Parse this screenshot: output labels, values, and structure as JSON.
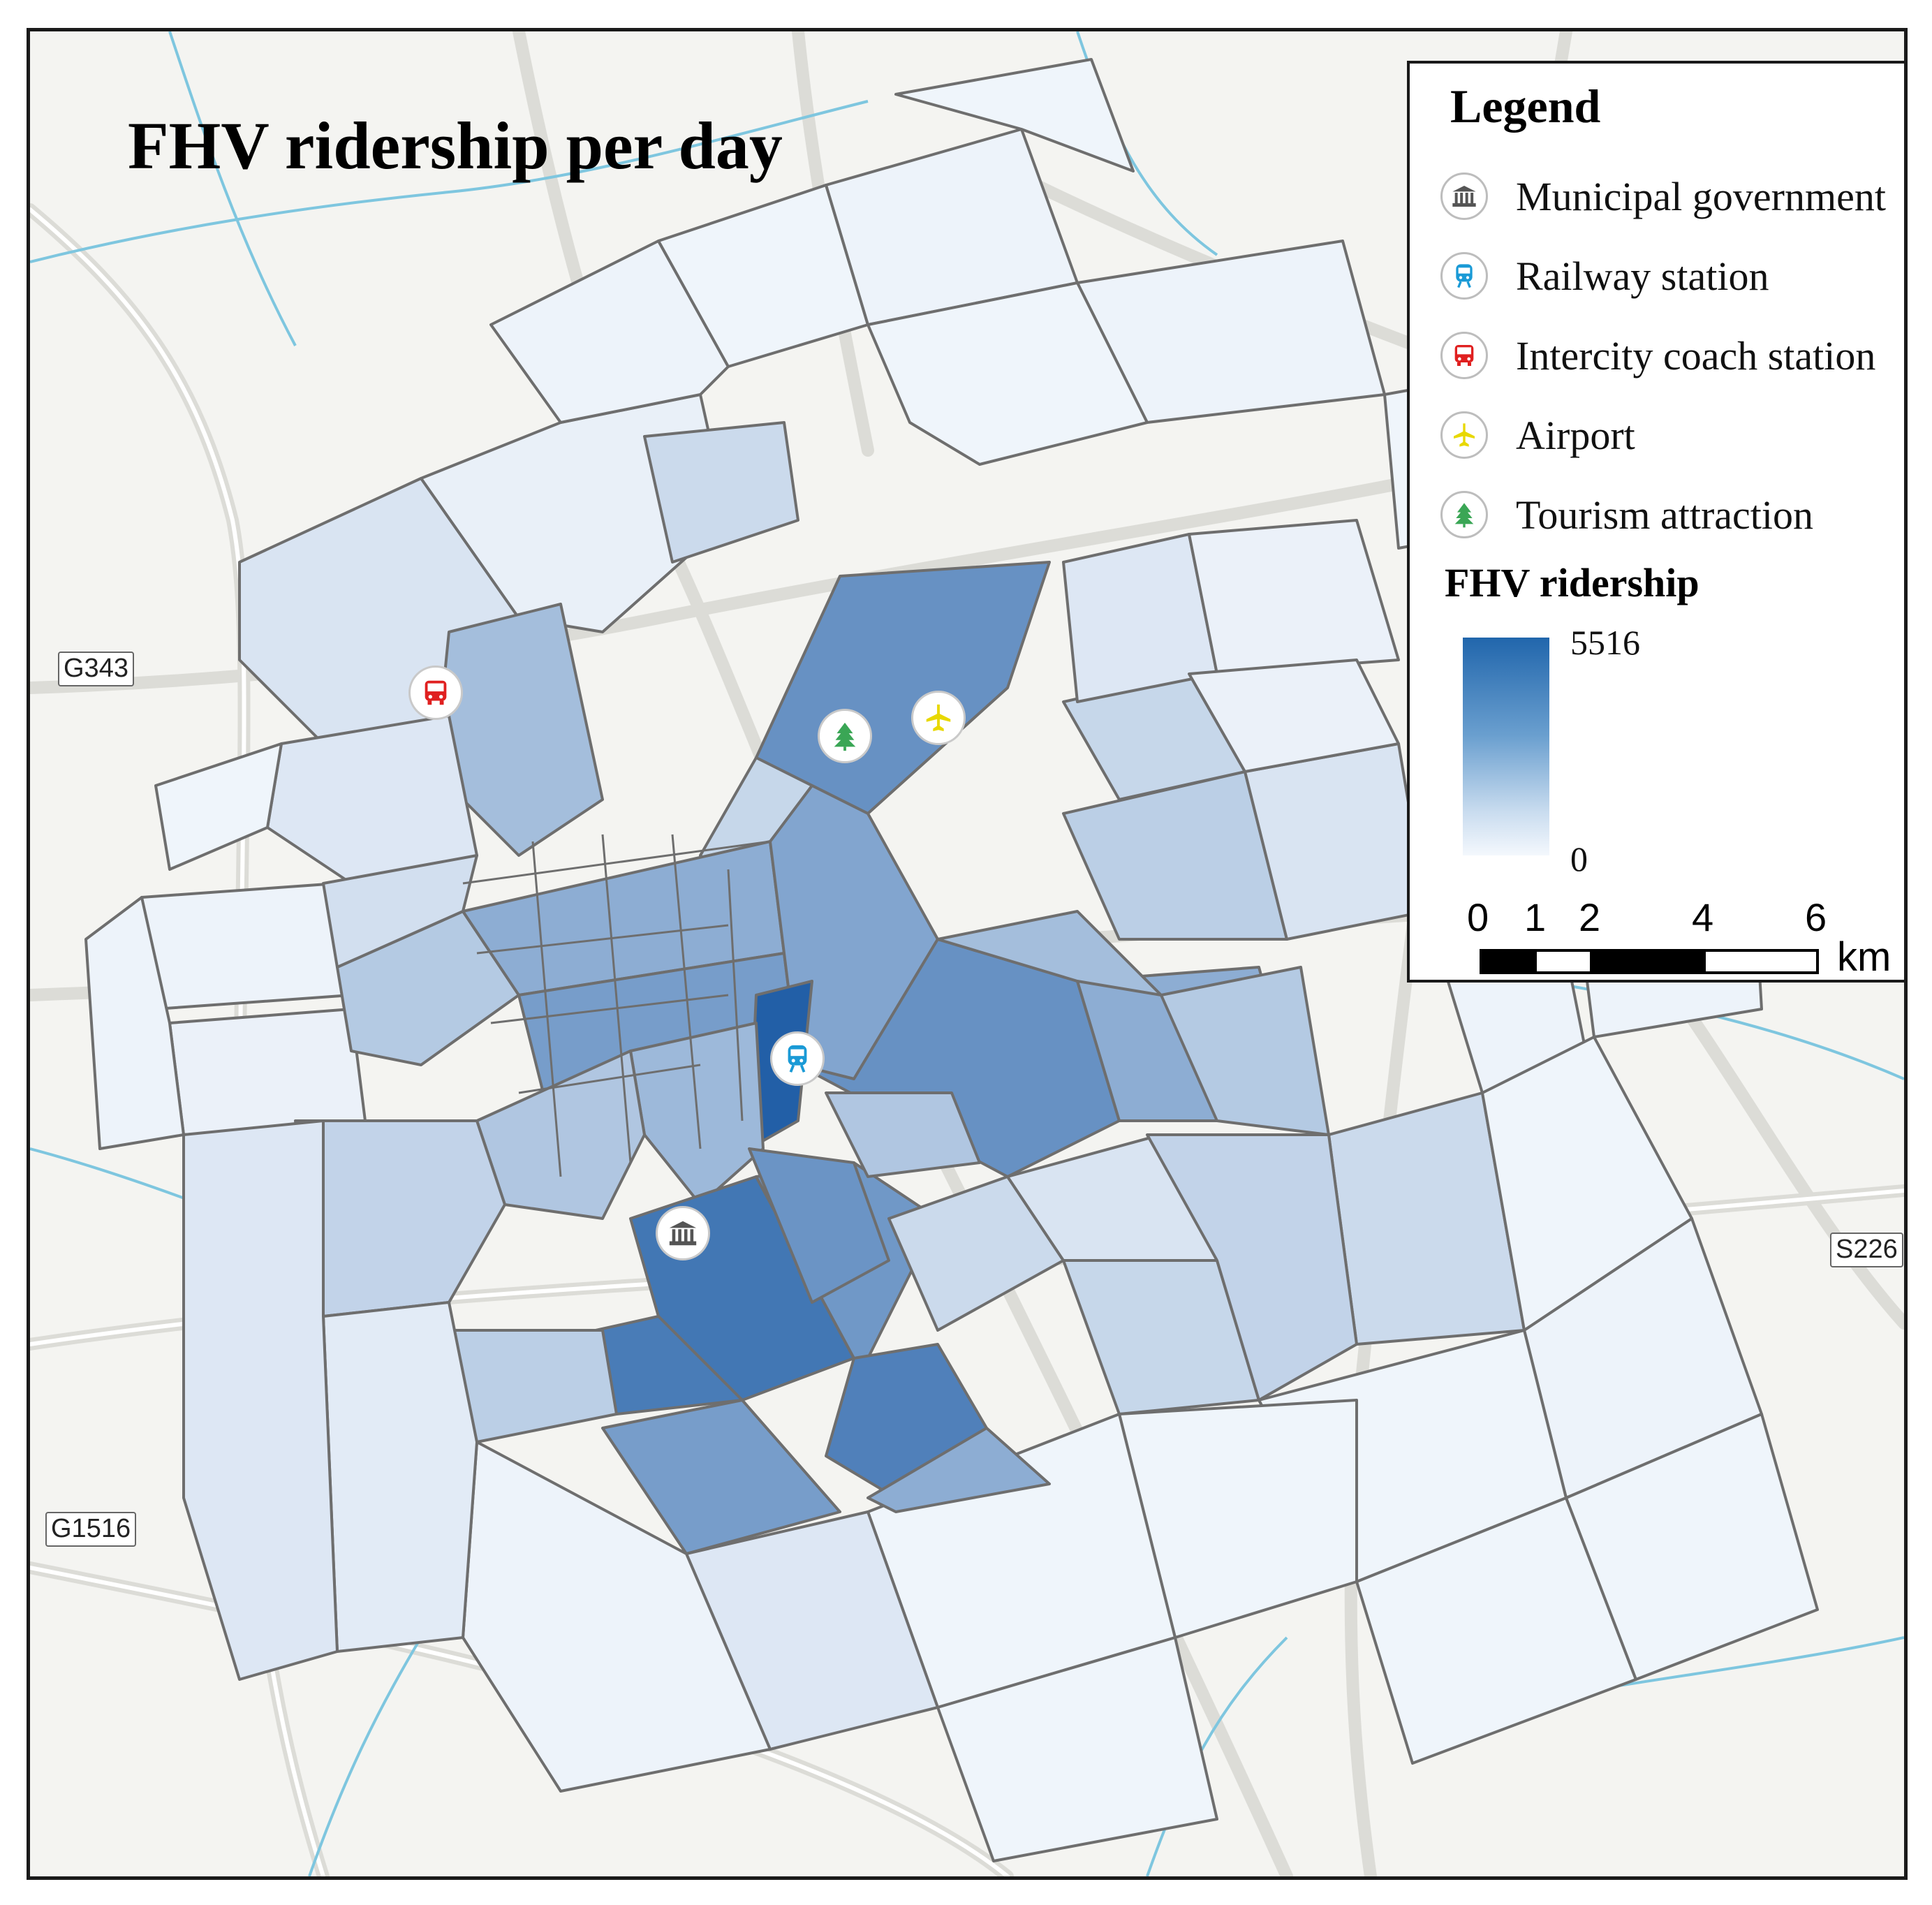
{
  "map": {
    "title": "FHV ridership per day",
    "road_labels": {
      "g343": "G343",
      "s226": "S226",
      "g1516": "G1516"
    },
    "colors": {
      "background": "#f4f4f1",
      "road": "#dcdcd7",
      "water": "#7ec6df",
      "boundary": "#6e6e6e",
      "ramp_high": "#2166ac",
      "ramp_low": "#f4f8fd"
    }
  },
  "legend": {
    "title": "Legend",
    "items": [
      {
        "label": "Municipal government",
        "icon": "government-building-icon",
        "color": "#555555"
      },
      {
        "label": "Railway station",
        "icon": "train-icon",
        "color": "#1a9ad6"
      },
      {
        "label": "Intercity coach station",
        "icon": "bus-icon",
        "color": "#e02020"
      },
      {
        "label": "Airport",
        "icon": "airplane-icon",
        "color": "#e8d800"
      },
      {
        "label": "Tourism attraction",
        "icon": "tree-icon",
        "color": "#3aa655"
      }
    ],
    "ramp": {
      "title": "FHV ridership",
      "max": "5516",
      "min": "0"
    },
    "scale": {
      "ticks": [
        "0",
        "1",
        "2",
        "4",
        "6"
      ],
      "unit": "km"
    }
  }
}
